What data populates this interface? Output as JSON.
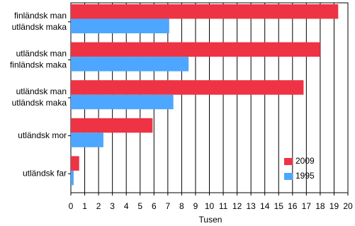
{
  "chart_data": {
    "type": "hbar",
    "categories": [
      [
        "finländsk man",
        "utländsk maka"
      ],
      [
        "utländsk man",
        "finländsk maka"
      ],
      [
        "utländsk man",
        "utländsk maka"
      ],
      [
        "utländsk mor"
      ],
      [
        "utländsk far"
      ]
    ],
    "series": [
      {
        "name": "2009",
        "color": "#ee3344",
        "values": [
          19.3,
          18.0,
          16.8,
          5.9,
          0.6
        ]
      },
      {
        "name": "1995",
        "color": "#4da6ff",
        "values": [
          7.1,
          8.5,
          7.4,
          2.35,
          0.2
        ]
      }
    ],
    "xlabel": "Tusen",
    "xlim": [
      0,
      20
    ],
    "xticks": [
      0,
      1,
      2,
      3,
      4,
      5,
      6,
      7,
      8,
      9,
      10,
      11,
      12,
      13,
      14,
      15,
      16,
      17,
      18,
      19,
      20
    ],
    "grid": true,
    "legend": "lower right"
  }
}
